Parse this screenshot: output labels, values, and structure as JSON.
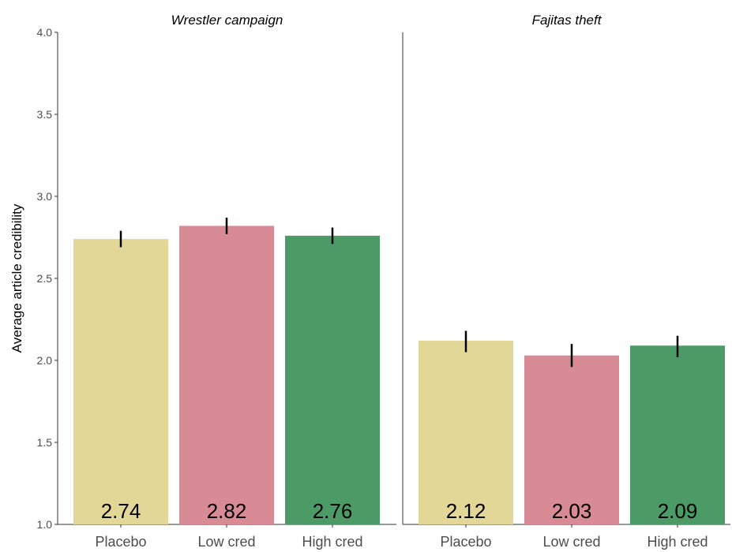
{
  "chart_data": {
    "type": "bar",
    "ylabel": "Average article credibility",
    "ylim": [
      1.0,
      4.0
    ],
    "yticks": [
      "1.0",
      "1.5",
      "2.0",
      "2.5",
      "3.0",
      "3.5",
      "4.0"
    ],
    "categories": [
      "Placebo",
      "Low cred",
      "High cred"
    ],
    "colors": [
      "#e3d798",
      "#d88b95",
      "#4c9a65"
    ],
    "error_bar_color": "#000000",
    "panels": [
      {
        "title": "Wrestler campaign",
        "values": [
          2.74,
          2.82,
          2.76
        ],
        "value_labels": [
          "2.74",
          "2.82",
          "2.76"
        ],
        "errors": [
          [
            2.69,
            2.79
          ],
          [
            2.77,
            2.87
          ],
          [
            2.71,
            2.81
          ]
        ]
      },
      {
        "title": "Fajitas theft",
        "values": [
          2.12,
          2.03,
          2.09
        ],
        "value_labels": [
          "2.12",
          "2.03",
          "2.09"
        ],
        "errors": [
          [
            2.05,
            2.18
          ],
          [
            1.96,
            2.1
          ],
          [
            2.02,
            2.15
          ]
        ]
      }
    ]
  }
}
